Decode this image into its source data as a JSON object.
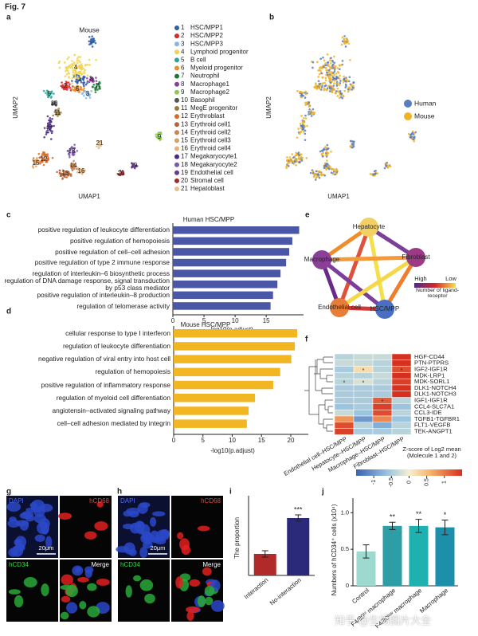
{
  "figure_label": "Fig. 7",
  "panel_a": {
    "label": "a",
    "title": "Mouse",
    "xlabel": "UMAP1",
    "ylabel": "UMAP2",
    "clusters": [
      {
        "number": "1",
        "name": "HSC/MPP1",
        "color": "#2f5fa8"
      },
      {
        "number": "2",
        "name": "HSC/MPP2",
        "color": "#d6262a"
      },
      {
        "number": "3",
        "name": "HSC/MPP3",
        "color": "#86b7e3"
      },
      {
        "number": "4",
        "name": "Lymphoid progenitor",
        "color": "#f1d34a"
      },
      {
        "number": "5",
        "name": "B cell",
        "color": "#23a79b"
      },
      {
        "number": "6",
        "name": "Myeloid progenitor",
        "color": "#f08a24"
      },
      {
        "number": "7",
        "name": "Neutrophil",
        "color": "#1c7a35"
      },
      {
        "number": "8",
        "name": "Macrophage1",
        "color": "#8a3f98"
      },
      {
        "number": "9",
        "name": "Macrophage2",
        "color": "#8cc84c"
      },
      {
        "number": "10",
        "name": "Basophil",
        "color": "#555555"
      },
      {
        "number": "11",
        "name": "MegE progenitor",
        "color": "#9a7b3a"
      },
      {
        "number": "12",
        "name": "Erythroblast",
        "color": "#d76b27"
      },
      {
        "number": "13",
        "name": "Erythroid cell1",
        "color": "#b5643b"
      },
      {
        "number": "14",
        "name": "Erythroid cell2",
        "color": "#c98650"
      },
      {
        "number": "15",
        "name": "Erythroid cell3",
        "color": "#d9a066"
      },
      {
        "number": "16",
        "name": "Erythroid cell4",
        "color": "#e7b27a"
      },
      {
        "number": "17",
        "name": "Megakaryocyte1",
        "color": "#4b2c85"
      },
      {
        "number": "18",
        "name": "Megakaryocyte2",
        "color": "#7a5aa8"
      },
      {
        "number": "19",
        "name": "Endothelial cell",
        "color": "#6a3a8a"
      },
      {
        "number": "20",
        "name": "Stromal cell",
        "color": "#a02a2a"
      },
      {
        "number": "21",
        "name": "Hepatoblast",
        "color": "#e4c08a"
      }
    ]
  },
  "panel_b": {
    "label": "b",
    "xlabel": "UMAP1",
    "ylabel": "UMAP2",
    "series": [
      {
        "name": "Human",
        "color": "#5a7dc0"
      },
      {
        "name": "Mouse",
        "color": "#f0b323"
      }
    ]
  },
  "panel_c": {
    "label": "c",
    "type": "bar",
    "orientation": "horizontal",
    "title": "Human HSC/MPP",
    "categories": [
      "positive regulation of leukocyte differentiation",
      "positive regulation of hemopoiesis",
      "positive regulation of cell–cell adhesion",
      "positive regulation of type 2 immune response",
      "regulation of interleukin–6 biosynthetic process",
      "regulation of DNA damage response, signal transduction by p53 class mediator",
      "positive regulation of interleukin–8 production",
      "regulation of telomerase activity"
    ],
    "values": [
      20.3,
      19.2,
      18.7,
      18.2,
      17.3,
      16.8,
      16.1,
      15.7
    ],
    "color": "#4a56a6",
    "xlabel": "-log10(p.adjust)",
    "xlim": [
      0,
      21
    ],
    "xticks": [
      0,
      5,
      10,
      15
    ]
  },
  "panel_d": {
    "label": "d",
    "type": "bar",
    "orientation": "horizontal",
    "title": "Mouse HSC/MPP",
    "categories": [
      "cellular response to type I interferon",
      "regulation of leukocyte differentiation",
      "negative regulation of viral entry into host cell",
      "regulation of hemopoiesis",
      "positive regulation of inflammatory response",
      "regulation of myeloid cell differentiation",
      "angiotensin–activated signaling pathway",
      "cell–cell adhesion mediated by integrin"
    ],
    "values": [
      21.1,
      20.7,
      20.1,
      18.2,
      17.0,
      13.9,
      12.8,
      12.5
    ],
    "color": "#f2b623",
    "xlabel": "-log10(p.adjust)",
    "xlim": [
      0,
      23
    ],
    "xticks": [
      0,
      5,
      10,
      15,
      20
    ]
  },
  "panel_e": {
    "label": "e",
    "nodes": [
      {
        "label": "Hepatocyte",
        "color": "#f3d064"
      },
      {
        "label": "Macrophage",
        "color": "#8a3f98"
      },
      {
        "label": "Fibroblast",
        "color": "#9c3a86"
      },
      {
        "label": "Endothelial cell",
        "color": "#e67e3a"
      },
      {
        "label": "HSC/MPP",
        "color": "#4a6fc0"
      }
    ],
    "legend": {
      "high": "High",
      "low": "Low",
      "title": "Number of ligand-receptor"
    }
  },
  "panel_f": {
    "label": "f",
    "type": "heatmap",
    "rows": [
      "HGF-CD44",
      "PTN-PTPRS",
      "IGF2-IGF1R",
      "MDK-LRP1",
      "MDK-SORL1",
      "DLK1-NOTCH4",
      "DLK1-NOTCH3",
      "IGF1-IGF1R",
      "CCL4-SLC7A1",
      "CCL3-IDE",
      "TGFB1-TGFBR1",
      "FLT1-VEGFB",
      "TEK-ANGPT1"
    ],
    "columns": [
      "Endothelial cell–HSC/MPP",
      "Hepatocyte–HSC/MPP",
      "Macrophage–HSC/MPP",
      "Fibroblast–HSC/MPP"
    ],
    "values": [
      [
        -0.4,
        -0.3,
        -0.3,
        1.5
      ],
      [
        -0.3,
        -0.3,
        -0.4,
        1.5
      ],
      [
        -0.5,
        0.2,
        -0.4,
        1.3
      ],
      [
        -0.4,
        -0.4,
        -0.3,
        1.5
      ],
      [
        -0.4,
        -0.2,
        -0.4,
        1.4
      ],
      [
        -0.5,
        -0.5,
        -0.5,
        1.5
      ],
      [
        -0.5,
        -0.5,
        -0.5,
        1.5
      ],
      [
        -0.5,
        -0.5,
        1.2,
        -0.4
      ],
      [
        -0.6,
        -0.5,
        1.4,
        -0.6
      ],
      [
        -0.3,
        -0.6,
        1.3,
        -0.4
      ],
      [
        0.8,
        -1.0,
        0.9,
        -0.6
      ],
      [
        1.3,
        -0.4,
        -0.8,
        -0.4
      ],
      [
        1.4,
        -0.5,
        -0.5,
        -0.4
      ]
    ],
    "zlim": [
      -1.5,
      1.5
    ],
    "zticks": [
      -1,
      -0.5,
      0,
      0.5,
      1
    ],
    "colorbar_title": "Z-score of Log2 mean (Molecule 1 and 2)",
    "significance_mark": "*",
    "significant_cells": [
      [
        2,
        1
      ],
      [
        2,
        3
      ],
      [
        4,
        0
      ],
      [
        4,
        1
      ],
      [
        7,
        2
      ]
    ]
  },
  "panel_g": {
    "label": "g",
    "channels": [
      "DAPI",
      "hCD68",
      "hCD34",
      "Merge"
    ],
    "scale_bar": "20μm"
  },
  "panel_h": {
    "label": "h",
    "channels": [
      "DAPI",
      "hCD68",
      "hCD34",
      "Merge"
    ],
    "scale_bar": "20μm"
  },
  "panel_i": {
    "label": "i",
    "type": "bar",
    "ylabel": "The proportion",
    "categories": [
      "Interaction",
      "No-interaction"
    ],
    "values": [
      0.27,
      0.72
    ],
    "errors": [
      0.04,
      0.04
    ],
    "colors": [
      "#b02a2a",
      "#2b2a7a"
    ],
    "ylim": [
      0,
      1
    ],
    "annotations": [
      {
        "index": 1,
        "text": "***"
      }
    ]
  },
  "panel_j": {
    "label": "j",
    "type": "bar",
    "ylabel": "Numbers of hCD34⁺ cells (x10⁴)",
    "categories": [
      "Control",
      "F4/80ʰⁱ macrophage",
      "F4/80ˡᵒʷ macrophage",
      "Macrophage"
    ],
    "values": [
      0.47,
      0.82,
      0.82,
      0.8
    ],
    "errors": [
      0.09,
      0.05,
      0.09,
      0.1
    ],
    "colors": [
      "#9ed9d0",
      "#2e9ea6",
      "#1fb0b0",
      "#1e8faa"
    ],
    "ylim": [
      0,
      1.2
    ],
    "yticks": [
      0,
      0.5,
      {
        "value": 1,
        "label": "1.0"
      }
    ],
    "annotations": [
      {
        "index": 1,
        "text": "**"
      },
      {
        "index": 2,
        "text": "**"
      },
      {
        "index": 3,
        "text": "*"
      }
    ]
  },
  "watermark": "知乎 @生物图片大全"
}
